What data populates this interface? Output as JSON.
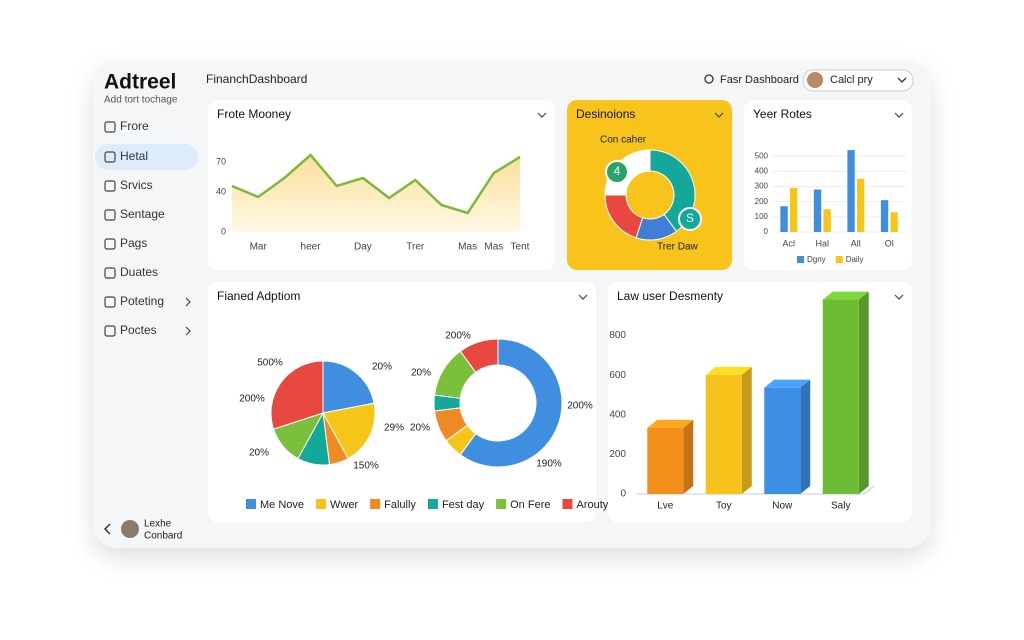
{
  "sidebar": {
    "logo": "Adtreel",
    "tagline": "Add tort tochage",
    "nav": [
      "Frore",
      "Hetal",
      "Srvics",
      "Sentage",
      "Pags",
      "Duates",
      "Poteting",
      "Poctes"
    ],
    "user_name": "Lexhe",
    "user_role": "Conbard"
  },
  "header": {
    "title": "FinanchDashboard",
    "search": "Fasr Dashboard",
    "user": "Calcl pry"
  },
  "chart_data": [
    {
      "type": "area",
      "title": "Frote Mooney",
      "categories": [
        null,
        "Mar",
        null,
        "heer",
        null,
        "Day",
        null,
        "Trer",
        null,
        "Mas",
        "Mas",
        "Tent"
      ],
      "values": [
        46,
        35,
        54,
        77,
        46,
        54,
        34,
        52,
        27,
        19,
        59,
        75
      ],
      "ylim": [
        0,
        80
      ],
      "yticks": [
        0,
        40,
        70
      ],
      "color": "#7cb83a",
      "fill": "#fbe09a"
    },
    {
      "type": "donut",
      "title": "Desinoions",
      "subtitle": "Con caher",
      "values": [
        40,
        15,
        20,
        25
      ],
      "colors": [
        "#14a89a",
        "#3f7fd8",
        "#e8483f",
        "#ffffff"
      ],
      "annotations": [
        "4",
        "S",
        "Trer Daw"
      ],
      "background": "#f8c41c"
    },
    {
      "type": "bar",
      "title": "Yeer Rotes",
      "categories": [
        "Acl",
        "Hal",
        "All",
        "Ol"
      ],
      "series": [
        {
          "name": "Dgny",
          "color": "#3f8ee0",
          "values": [
            170,
            280,
            540,
            210
          ]
        },
        {
          "name": "Daily",
          "color": "#f5c518",
          "values": [
            290,
            150,
            350,
            130
          ]
        }
      ],
      "ylim": [
        0,
        600
      ],
      "yticks": [
        0,
        100,
        200,
        300,
        400,
        500
      ],
      "grid": true
    },
    {
      "type": "pie",
      "title": "Fianed Adptiom",
      "categories": [
        "Me Nove",
        "Wwer",
        "Falully",
        "Fest day",
        "On Fere",
        "Arouty"
      ],
      "colors": [
        "#3f8ee0",
        "#f5c518",
        "#f08a24",
        "#14a89a",
        "#7cbf3a",
        "#e8483f"
      ],
      "series": [
        {
          "style": "pie",
          "values": [
            22,
            20,
            6,
            10,
            12,
            30
          ]
        },
        {
          "style": "donut",
          "values": [
            60,
            5,
            8,
            4,
            13,
            10
          ]
        }
      ],
      "annotations": [
        "500%",
        "20%",
        "200%",
        "29%",
        "20%",
        "150%",
        "200%",
        "20%",
        "20%",
        "200%",
        "190%"
      ]
    },
    {
      "type": "bar",
      "3d": true,
      "title": "Law user Desmenty",
      "categories": [
        "Lve",
        "Toy",
        "Now",
        "Saly"
      ],
      "values": [
        334,
        602,
        537,
        982
      ],
      "colors": [
        "#f39019",
        "#f7c21b",
        "#3d8fe6",
        "#6cbd33"
      ],
      "ylim": [
        0,
        1000
      ],
      "yticks": [
        0,
        200,
        400,
        600,
        800
      ]
    }
  ]
}
